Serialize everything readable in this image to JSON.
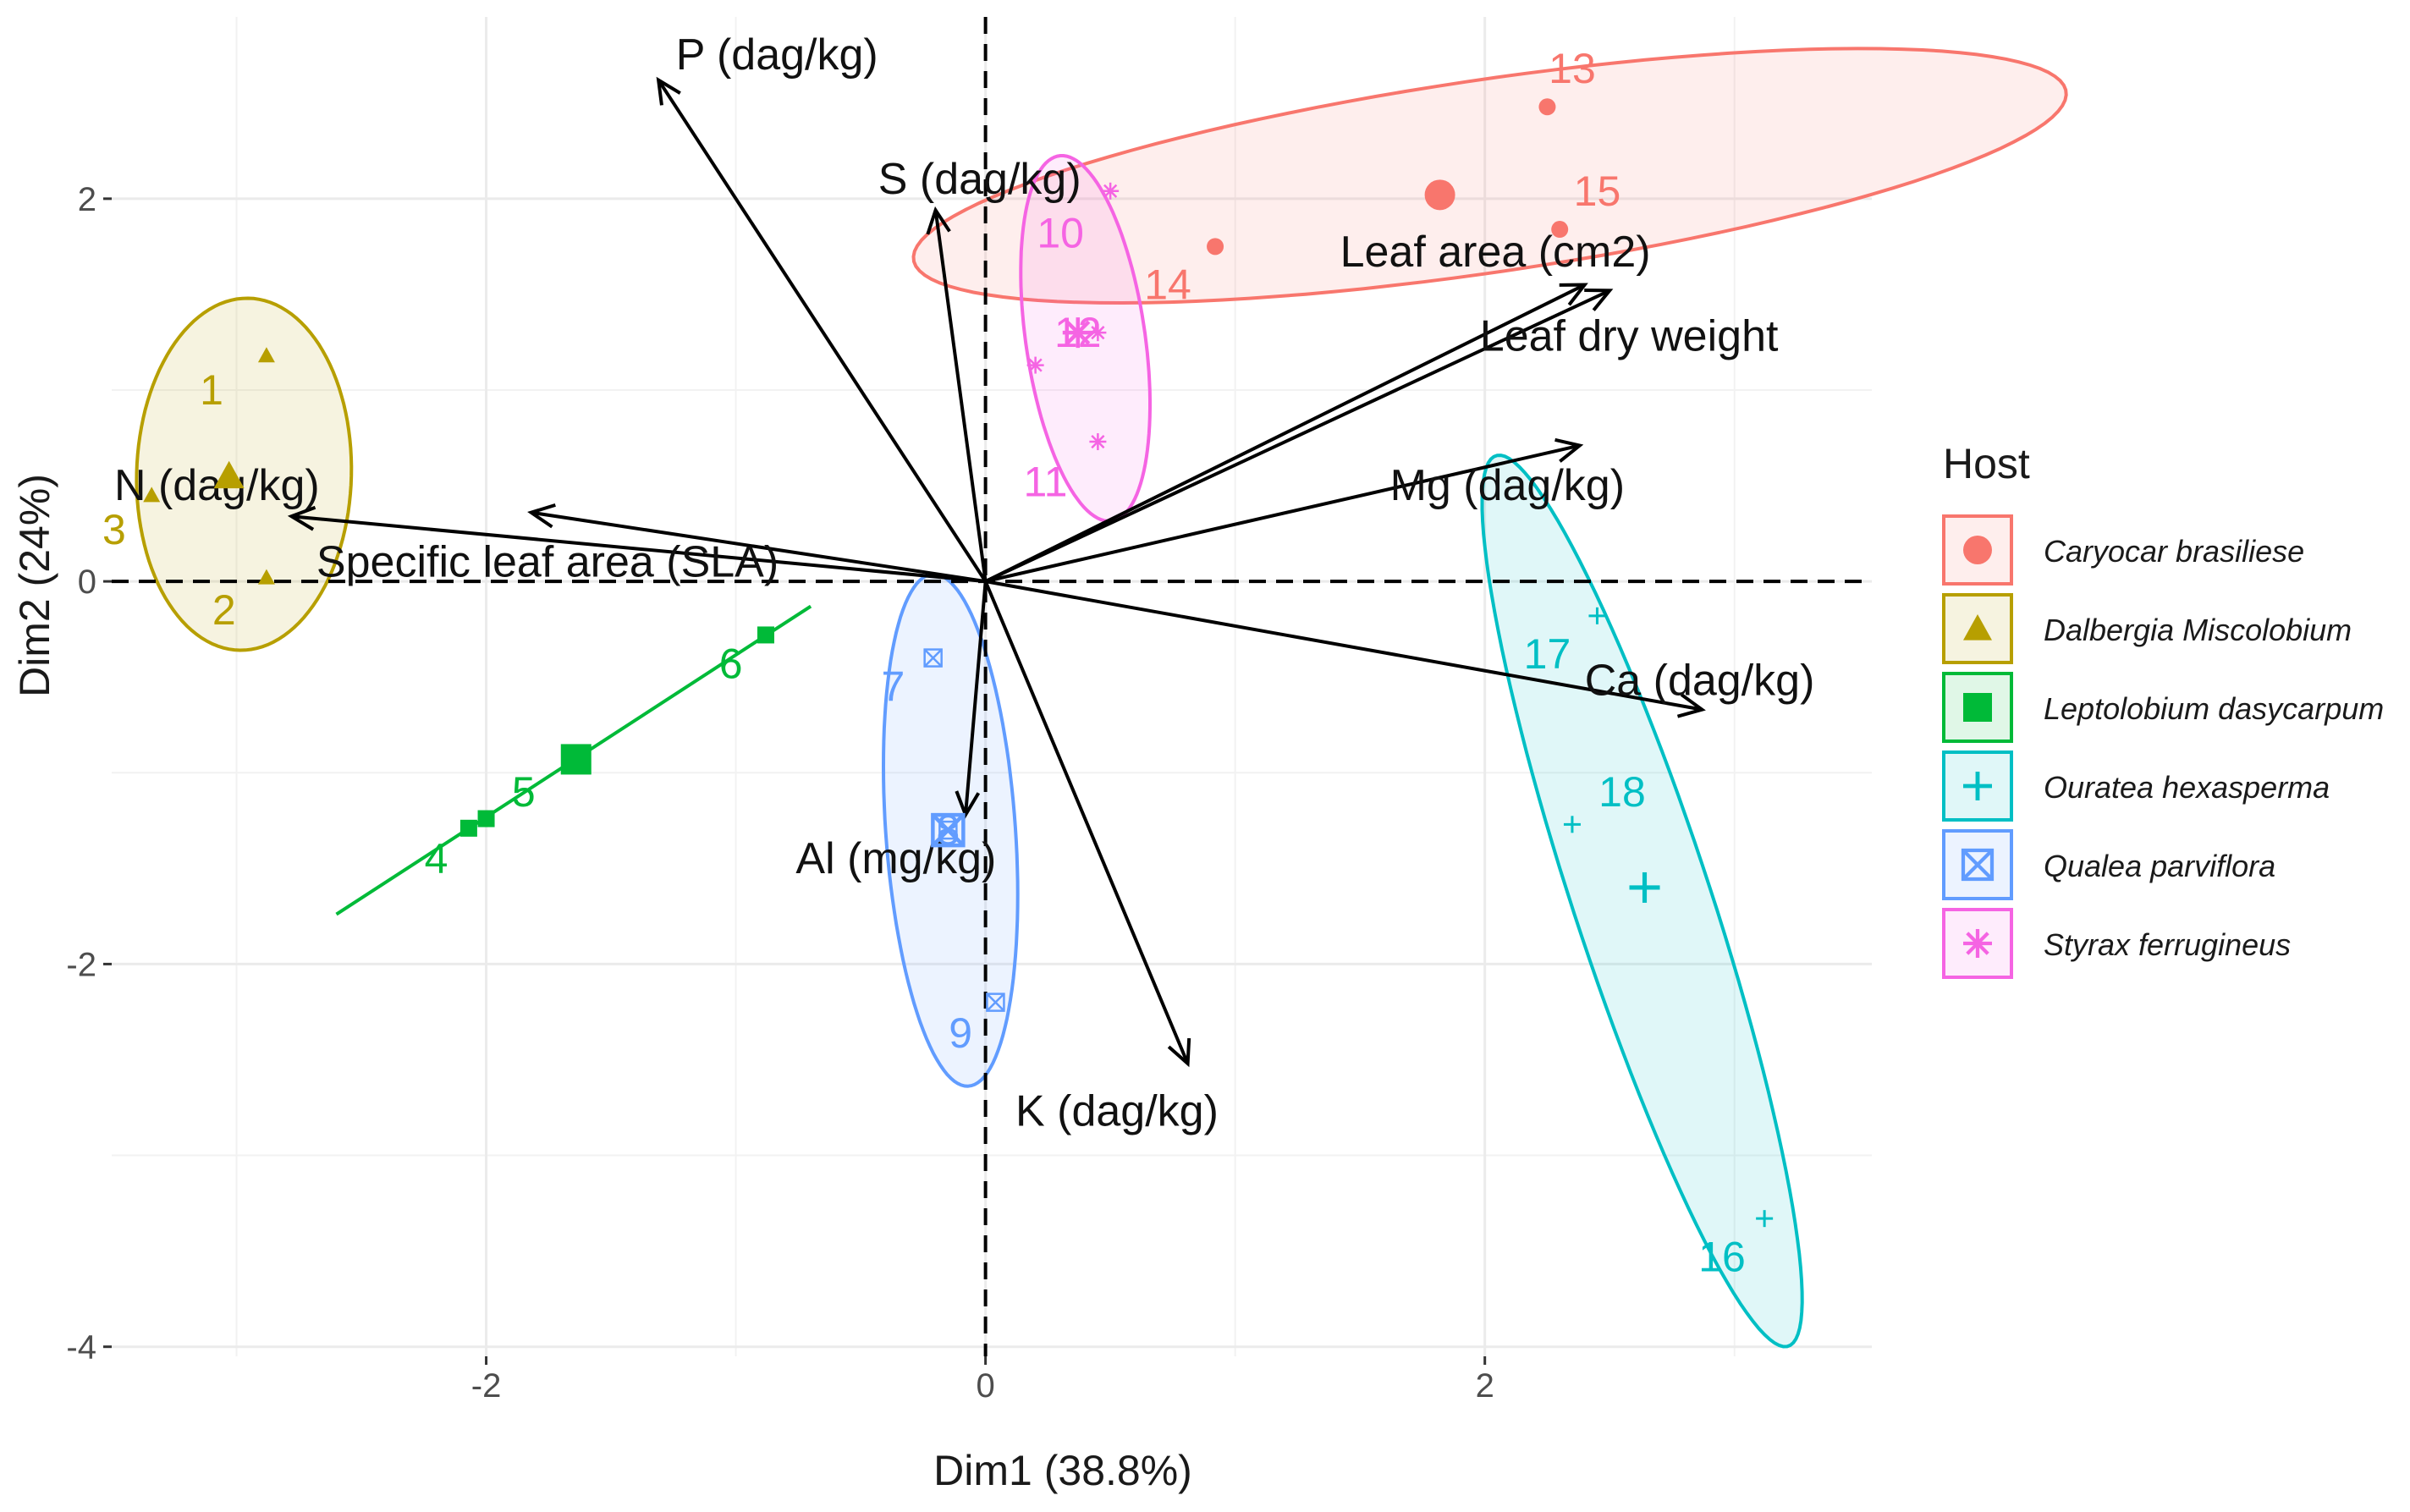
{
  "chart_data": {
    "type": "biplot",
    "xlabel": "Dim1 (38.8%)",
    "ylabel": "Dim2 (24%)",
    "xlim": [
      -3.5,
      3.55
    ],
    "ylim": [
      -4.05,
      2.95
    ],
    "xticks": [
      -2,
      0,
      2
    ],
    "xtick_labels": [
      "-2",
      "0",
      "2"
    ],
    "yticks": [
      -4,
      -2,
      0,
      2
    ],
    "ytick_labels": [
      "-4",
      "-2",
      "0",
      "2"
    ],
    "legend": {
      "title": "Host",
      "position": "right",
      "entries": [
        {
          "label": "Caryocar brasiliese",
          "color": "#F8766D",
          "shape": "circle"
        },
        {
          "label": "Dalbergia Miscolobium",
          "color": "#B79F00",
          "shape": "triangle"
        },
        {
          "label": "Leptolobium dasycarpum",
          "color": "#00BA38",
          "shape": "square"
        },
        {
          "label": "Ouratea hexasperma",
          "color": "#00BFC4",
          "shape": "plus"
        },
        {
          "label": "Qualea parviflora",
          "color": "#619CFF",
          "shape": "boxcross"
        },
        {
          "label": "Styrax ferrugineus",
          "color": "#F564E3",
          "shape": "asterisk"
        }
      ]
    },
    "series": [
      {
        "name": "Caryocar brasiliese",
        "color": "#F8766D",
        "shape": "circle",
        "points": [
          {
            "label": "13",
            "x": 2.25,
            "y": 2.48,
            "lx": 2.35,
            "ly": 2.68
          },
          {
            "label": "15",
            "x": 2.3,
            "y": 1.84,
            "lx": 2.45,
            "ly": 2.04
          },
          {
            "label": "14",
            "x": 0.92,
            "y": 1.75,
            "lx": 0.73,
            "ly": 1.55
          }
        ],
        "centroid": {
          "x": 1.82,
          "y": 2.02
        },
        "ellipse": {
          "cx": 2.02,
          "cy": 2.12,
          "rx": 2.35,
          "ry": 0.5,
          "angle": 11
        }
      },
      {
        "name": "Dalbergia Miscolobium",
        "color": "#B79F00",
        "shape": "triangle",
        "points": [
          {
            "label": "1",
            "x": -2.88,
            "y": 1.18,
            "lx": -3.1,
            "ly": 1.0
          },
          {
            "label": "3",
            "x": -3.34,
            "y": 0.45,
            "lx": -3.49,
            "ly": 0.27
          },
          {
            "label": "2",
            "x": -2.88,
            "y": 0.02,
            "lx": -3.05,
            "ly": -0.15
          }
        ],
        "centroid": {
          "x": -3.03,
          "y": 0.55
        },
        "ellipse": {
          "cx": -2.97,
          "cy": 0.56,
          "rx": 0.92,
          "ry": 0.43,
          "angle": 89
        }
      },
      {
        "name": "Leptolobium dasycarpum",
        "color": "#00BA38",
        "shape": "square",
        "points": [
          {
            "label": "4",
            "x": -2.07,
            "y": -1.29,
            "lx": -2.2,
            "ly": -1.45
          },
          {
            "label": "5",
            "x": -2.0,
            "y": -1.24,
            "lx": -1.85,
            "ly": -1.1
          },
          {
            "label": "6",
            "x": -0.88,
            "y": -0.28,
            "lx": -1.02,
            "ly": -0.43
          }
        ],
        "centroid": {
          "x": -1.64,
          "y": -0.93
        },
        "ellipse_line": {
          "x1": -2.6,
          "y1": -1.74,
          "x2": -0.7,
          "y2": -0.13
        }
      },
      {
        "name": "Ouratea hexasperma",
        "color": "#00BFC4",
        "shape": "plus",
        "points": [
          {
            "label": "17",
            "x": 2.45,
            "y": -0.18,
            "lx": 2.25,
            "ly": -0.38
          },
          {
            "label": "18",
            "x": 2.35,
            "y": -1.27,
            "lx": 2.55,
            "ly": -1.1
          },
          {
            "label": "16",
            "x": 3.12,
            "y": -3.33,
            "lx": 2.95,
            "ly": -3.53
          }
        ],
        "centroid": {
          "x": 2.64,
          "y": -1.6
        },
        "ellipse": {
          "cx": 2.63,
          "cy": -1.67,
          "rx": 2.4,
          "ry": 0.28,
          "angle": -76
        }
      },
      {
        "name": "Qualea parviflora",
        "color": "#619CFF",
        "shape": "boxcross",
        "points": [
          {
            "label": "7",
            "x": -0.21,
            "y": -0.4,
            "lx": -0.37,
            "ly": -0.55
          },
          {
            "label": "8",
            "x": -0.15,
            "y": -1.3,
            "lx": -0.15,
            "ly": -1.3
          },
          {
            "label": "9",
            "x": 0.04,
            "y": -2.2,
            "lx": -0.1,
            "ly": -2.36
          }
        ],
        "centroid": {
          "x": -0.15,
          "y": -1.3
        },
        "ellipse": {
          "cx": -0.14,
          "cy": -1.3,
          "rx": 1.34,
          "ry": 0.26,
          "angle": -87
        }
      },
      {
        "name": "Styrax ferrugineus",
        "color": "#F564E3",
        "shape": "asterisk",
        "points": [
          {
            "label": "10",
            "x": 0.5,
            "y": 2.04,
            "lx": 0.3,
            "ly": 1.82
          },
          {
            "label": "12",
            "x": 0.45,
            "y": 1.3,
            "lx": 0.37,
            "ly": 1.3
          },
          {
            "label": "11",
            "x": 0.2,
            "y": 1.13,
            "lx": 0.24,
            "ly": 0.52
          },
          {
            "label": "",
            "x": 0.45,
            "y": 0.73,
            "lx": 0.45,
            "ly": 0.73
          }
        ],
        "centroid": {
          "x": 0.37,
          "y": 1.3
        },
        "ellipse": {
          "cx": 0.4,
          "cy": 1.27,
          "rx": 0.96,
          "ry": 0.24,
          "angle": -84
        }
      }
    ],
    "arrows": [
      {
        "label": "P (dag/kg)",
        "x": -1.31,
        "y": 2.62,
        "lx": -1.24,
        "ly": 2.75,
        "anchor": "start"
      },
      {
        "label": "S (dag/kg)",
        "x": -0.2,
        "y": 1.94,
        "lx": -0.43,
        "ly": 2.1,
        "anchor": "start"
      },
      {
        "label": "Leaf area (cm2)",
        "x": 2.4,
        "y": 1.55,
        "lx": 1.42,
        "ly": 1.72,
        "anchor": "start"
      },
      {
        "label": "Leaf dry weight",
        "x": 2.5,
        "y": 1.52,
        "lx": 1.98,
        "ly": 1.28,
        "anchor": "start"
      },
      {
        "label": "Mg (dag/kg)",
        "x": 2.38,
        "y": 0.71,
        "lx": 1.62,
        "ly": 0.5,
        "anchor": "start"
      },
      {
        "label": "Ca (dag/kg)",
        "x": 2.87,
        "y": -0.67,
        "lx": 2.4,
        "ly": -0.52,
        "anchor": "start"
      },
      {
        "label": "K (dag/kg)",
        "x": 0.81,
        "y": -2.52,
        "lx": 0.12,
        "ly": -2.77,
        "anchor": "start"
      },
      {
        "label": "Al (mg/kg)",
        "x": -0.08,
        "y": -1.22,
        "lx": -0.76,
        "ly": -1.45,
        "anchor": "start"
      },
      {
        "label": "N (dag/kg)",
        "x": -2.78,
        "y": 0.34,
        "lx": -3.49,
        "ly": 0.5,
        "anchor": "start"
      },
      {
        "label": "Specific leaf area (SLA)",
        "x": -1.82,
        "y": 0.36,
        "lx": -2.68,
        "ly": 0.1,
        "anchor": "start"
      }
    ]
  }
}
